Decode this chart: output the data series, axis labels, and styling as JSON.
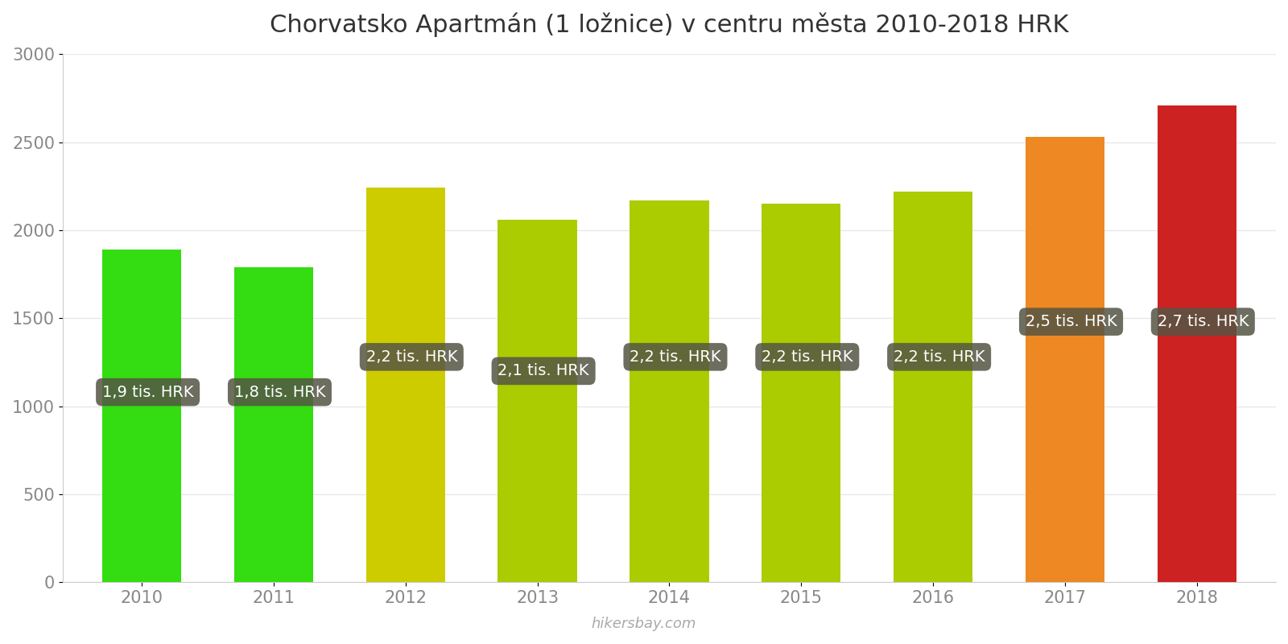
{
  "title": "Chorvatsko Apartmán (1 ložnice) v centru města 2010-2018 HRK",
  "years": [
    2010,
    2011,
    2012,
    2013,
    2014,
    2015,
    2016,
    2017,
    2018
  ],
  "values": [
    1890,
    1790,
    2240,
    2060,
    2170,
    2150,
    2220,
    2530,
    2710
  ],
  "bar_colors": [
    "#33dd11",
    "#33dd11",
    "#cccc00",
    "#aacc00",
    "#aacc00",
    "#aacc00",
    "#aacc00",
    "#ee8822",
    "#cc2222"
  ],
  "labels": [
    "1,9 tis. HRK",
    "1,8 tis. HRK",
    "2,2 tis. HRK",
    "2,1 tis. HRK",
    "2,2 tis. HRK",
    "2,2 tis. HRK",
    "2,2 tis. HRK",
    "2,5 tis. HRK",
    "2,7 tis. HRK"
  ],
  "label_y_values": [
    1080,
    1080,
    1280,
    1200,
    1280,
    1280,
    1280,
    1480,
    1480
  ],
  "ylim": [
    0,
    3000
  ],
  "yticks": [
    0,
    500,
    1000,
    1500,
    2000,
    2500,
    3000
  ],
  "background_color": "#ffffff",
  "grid_color": "#e8e8e8",
  "label_box_color": "#555544",
  "label_text_color": "#ffffff",
  "watermark": "hikersbay.com",
  "title_fontsize": 22,
  "tick_fontsize": 15,
  "label_fontsize": 14
}
